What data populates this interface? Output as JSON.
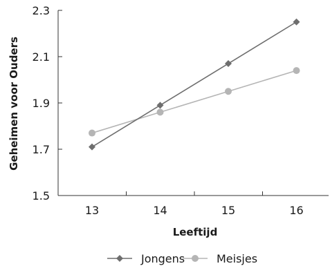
{
  "chart_data": {
    "type": "line",
    "x": [
      13,
      14,
      15,
      16
    ],
    "xlabel": "Leeftijd",
    "ylabel": "Geheimen voor Ouders",
    "ylim": [
      1.5,
      2.3
    ],
    "yticks": [
      "1.5",
      "1.7",
      "1.9",
      "2.1",
      "2.3"
    ],
    "xticks": [
      "13",
      "14",
      "15",
      "16"
    ],
    "grid": false,
    "legend_position": "bottom",
    "series": [
      {
        "name": "Jongens",
        "values": [
          1.71,
          1.89,
          2.07,
          2.25
        ],
        "color": "#6e6e6e",
        "marker": "diamond"
      },
      {
        "name": "Meisjes",
        "values": [
          1.77,
          1.86,
          1.95,
          2.04
        ],
        "color": "#b5b5b5",
        "marker": "circle"
      }
    ]
  }
}
